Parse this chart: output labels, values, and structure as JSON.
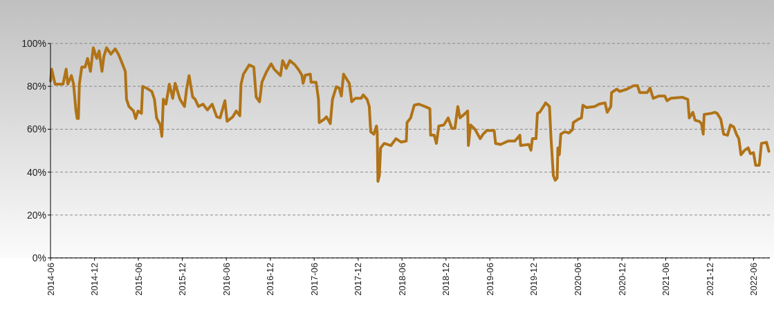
{
  "chart_data": {
    "type": "line",
    "xlim": [
      "2014-06-01",
      "2022-08-08"
    ],
    "ylim": [
      0,
      100
    ],
    "xticks": [
      "2014-06",
      "2014-12",
      "2015-06",
      "2015-12",
      "2016-06",
      "2016-12",
      "2017-06",
      "2017-12",
      "2018-06",
      "2018-12",
      "2019-06",
      "2019-12",
      "2020-06",
      "2020-12",
      "2021-06",
      "2021-12",
      "2022-06"
    ],
    "yticks": [
      {
        "value": 0,
        "label": "0%"
      },
      {
        "value": 20,
        "label": "20%"
      },
      {
        "value": 40,
        "label": "40%"
      },
      {
        "value": 60,
        "label": "60%"
      },
      {
        "value": 80,
        "label": "80%"
      },
      {
        "value": 100,
        "label": "100%"
      }
    ],
    "grid": "y",
    "marker": "none",
    "line_style": "solid",
    "x": [
      "2014-06-01",
      "2014-06-06",
      "2014-06-20",
      "2014-06-30",
      "2014-07-23",
      "2014-08-05",
      "2014-08-12",
      "2014-08-27",
      "2014-09-05",
      "2014-09-15",
      "2014-09-20",
      "2014-09-25",
      "2014-09-29",
      "2014-10-09",
      "2014-10-23",
      "2014-11-02",
      "2014-11-14",
      "2014-11-26",
      "2014-12-10",
      "2014-12-20",
      "2015-01-01",
      "2015-01-09",
      "2015-01-20",
      "2015-02-07",
      "2015-02-25",
      "2015-03-10",
      "2015-03-19",
      "2015-04-08",
      "2015-04-13",
      "2015-04-23",
      "2015-05-12",
      "2015-05-21",
      "2015-05-31",
      "2015-06-14",
      "2015-06-19",
      "2015-07-08",
      "2015-07-27",
      "2015-08-07",
      "2015-08-16",
      "2015-08-31",
      "2015-09-07",
      "2015-09-13",
      "2015-09-24",
      "2015-10-08",
      "2015-10-22",
      "2015-11-01",
      "2015-11-21",
      "2015-12-10",
      "2015-12-19",
      "2015-12-29",
      "2016-01-13",
      "2016-01-23",
      "2016-02-06",
      "2016-02-25",
      "2016-03-14",
      "2016-04-03",
      "2016-04-22",
      "2016-05-06",
      "2016-05-26",
      "2016-06-04",
      "2016-06-28",
      "2016-07-12",
      "2016-07-27",
      "2016-08-01",
      "2016-08-11",
      "2016-09-04",
      "2016-09-23",
      "2016-10-03",
      "2016-10-17",
      "2016-10-27",
      "2016-11-15",
      "2016-12-04",
      "2016-12-18",
      "2017-01-12",
      "2017-01-21",
      "2017-02-05",
      "2017-02-20",
      "2017-03-13",
      "2017-03-28",
      "2017-04-11",
      "2017-04-16",
      "2017-04-25",
      "2017-05-16",
      "2017-05-19",
      "2017-06-09",
      "2017-06-19",
      "2017-06-22",
      "2017-07-13",
      "2017-07-22",
      "2017-08-07",
      "2017-08-16",
      "2017-09-01",
      "2017-09-13",
      "2017-09-22",
      "2017-10-01",
      "2017-10-13",
      "2017-10-25",
      "2017-11-04",
      "2017-11-19",
      "2017-12-13",
      "2017-12-22",
      "2018-01-07",
      "2018-01-16",
      "2018-01-22",
      "2018-02-04",
      "2018-02-15",
      "2018-02-18",
      "2018-02-21",
      "2018-02-27",
      "2018-03-04",
      "2018-03-19",
      "2018-04-16",
      "2018-05-07",
      "2018-05-29",
      "2018-06-19",
      "2018-06-22",
      "2018-07-07",
      "2018-07-22",
      "2018-08-10",
      "2018-09-04",
      "2018-09-25",
      "2018-09-28",
      "2018-10-13",
      "2018-10-22",
      "2018-11-01",
      "2018-11-22",
      "2018-12-10",
      "2018-12-25",
      "2019-01-07",
      "2019-01-19",
      "2019-01-28",
      "2019-02-19",
      "2019-03-01",
      "2019-03-04",
      "2019-03-13",
      "2019-04-01",
      "2019-04-22",
      "2019-05-04",
      "2019-05-19",
      "2019-06-19",
      "2019-06-25",
      "2019-07-16",
      "2019-08-16",
      "2019-09-13",
      "2019-10-04",
      "2019-10-07",
      "2019-11-10",
      "2019-11-19",
      "2019-11-25",
      "2019-12-10",
      "2019-12-16",
      "2019-12-26",
      "2020-01-10",
      "2020-01-19",
      "2020-02-04",
      "2020-02-10",
      "2020-02-13",
      "2020-02-20",
      "2020-02-28",
      "2020-03-07",
      "2020-03-10",
      "2020-03-16",
      "2020-03-22",
      "2020-04-07",
      "2020-04-25",
      "2020-05-10",
      "2020-05-13",
      "2020-06-03",
      "2020-06-16",
      "2020-06-22",
      "2020-07-07",
      "2020-08-10",
      "2020-08-28",
      "2020-09-22",
      "2020-10-01",
      "2020-10-16",
      "2020-10-19",
      "2020-11-10",
      "2020-11-22",
      "2020-12-22",
      "2021-01-19",
      "2021-02-04",
      "2021-02-13",
      "2021-03-16",
      "2021-03-28",
      "2021-04-10",
      "2021-05-04",
      "2021-05-28",
      "2021-06-07",
      "2021-06-22",
      "2021-08-10",
      "2021-09-01",
      "2021-09-07",
      "2021-09-22",
      "2021-10-01",
      "2021-10-19",
      "2021-10-28",
      "2021-11-04",
      "2021-11-08",
      "2021-12-07",
      "2021-12-22",
      "2022-01-01",
      "2022-01-16",
      "2022-01-28",
      "2022-02-13",
      "2022-02-25",
      "2022-03-11",
      "2022-03-22",
      "2022-04-01",
      "2022-04-10",
      "2022-04-25",
      "2022-05-10",
      "2022-05-19",
      "2022-06-01",
      "2022-06-10",
      "2022-06-25",
      "2022-07-04",
      "2022-07-25",
      "2022-08-04"
    ],
    "series": [
      {
        "color": "#b07317",
        "values": [
          82.5,
          88,
          81,
          81,
          81,
          88,
          81,
          85,
          81,
          68.5,
          65,
          65,
          81,
          89,
          89,
          93,
          87,
          98,
          93,
          96.5,
          87,
          94,
          98,
          95,
          97.5,
          95,
          92.7,
          87,
          74,
          70.6,
          68.5,
          65,
          68.5,
          67.4,
          80,
          79,
          77.6,
          74,
          65.3,
          62,
          56.7,
          74,
          71.7,
          81,
          74.4,
          81.4,
          74,
          70.6,
          79,
          85,
          75,
          74,
          70.6,
          71.7,
          69,
          71.7,
          65.8,
          65.3,
          73.3,
          63.7,
          65.8,
          68.5,
          66.3,
          81,
          85.7,
          90,
          89,
          75,
          72.8,
          82,
          86.8,
          90.5,
          87.8,
          85,
          92,
          88.4,
          92,
          90,
          87.8,
          85.2,
          81.4,
          85.2,
          85.7,
          81.9,
          81.9,
          73.9,
          63.1,
          64.7,
          65.8,
          62.6,
          73.9,
          79.8,
          79.2,
          75.5,
          85.7,
          83.5,
          81.4,
          72.8,
          74.4,
          74.4,
          76,
          73.9,
          70.6,
          58.8,
          57.7,
          61.5,
          58.8,
          35.7,
          38.4,
          51.3,
          53.4,
          52.4,
          55.6,
          54,
          54.5,
          63.1,
          65.3,
          71.2,
          71.7,
          70.6,
          69.6,
          57.2,
          57.2,
          53.4,
          61.5,
          62,
          65.3,
          60.4,
          60.4,
          70.6,
          65.3,
          67.4,
          68.5,
          52.4,
          62,
          59.9,
          55.6,
          57.7,
          59.4,
          59.4,
          53.4,
          52.9,
          54.5,
          54.5,
          57.2,
          52.4,
          52.9,
          50.2,
          55.6,
          55.6,
          67.4,
          68,
          70.6,
          72.3,
          70.6,
          56.7,
          51.3,
          38.4,
          36.2,
          37.3,
          51.3,
          48.1,
          57.7,
          58.8,
          58.3,
          59.9,
          63.1,
          64.7,
          65.3,
          71.2,
          70.1,
          70.6,
          71.7,
          72.3,
          67.9,
          70.6,
          77.1,
          78.7,
          77.6,
          78.7,
          80.3,
          80.3,
          77.1,
          77.1,
          79.2,
          74.4,
          75.5,
          75.5,
          73.3,
          74.4,
          74.9,
          73.9,
          65.3,
          67.9,
          64.2,
          63.6,
          62.6,
          57.7,
          66.9,
          67.4,
          67.9,
          67.4,
          64.7,
          57.7,
          57.2,
          62,
          61,
          57.7,
          55.6,
          48.1,
          50.2,
          51.3,
          48.6,
          49.1,
          43.2,
          43.2,
          53.4,
          53.9,
          49.7
        ]
      }
    ]
  }
}
